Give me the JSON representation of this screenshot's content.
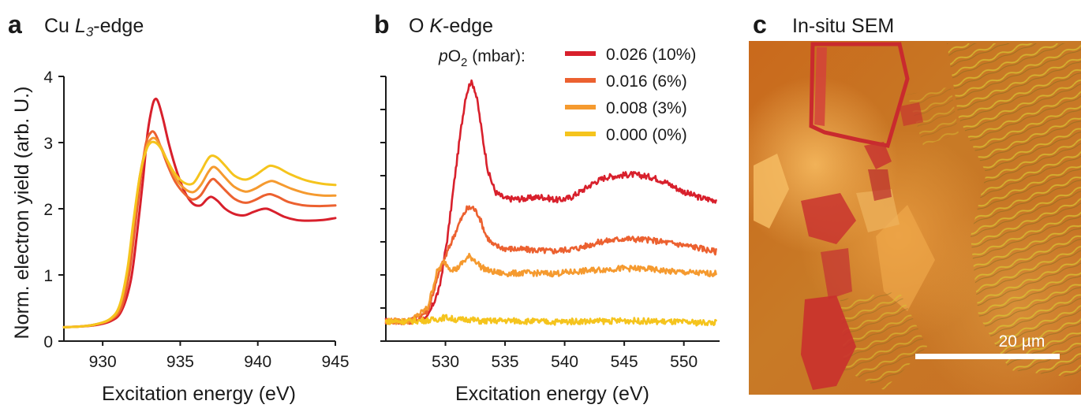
{
  "panels": {
    "a": {
      "letter": "a"
    },
    "b": {
      "letter": "b"
    },
    "c": {
      "letter": "c",
      "title": "In-situ SEM",
      "scalebar_label": "20 µm"
    }
  },
  "legend": {
    "title_p": "p",
    "title_o": "O",
    "title_sub": "2",
    "title_rest": " (mbar):"
  },
  "chart_data": [
    {
      "id": "a",
      "type": "line",
      "title_prefix": "Cu ",
      "title_italic": "L",
      "title_sub": "3",
      "title_suffix": "-edge",
      "xlabel": "Excitation energy (eV)",
      "ylabel": "Norm. electron yield (arb. U.)",
      "xlim": [
        927.5,
        945
      ],
      "ylim": [
        0,
        4
      ],
      "xticks": [
        930,
        935,
        940,
        945
      ],
      "yticks": [
        0,
        1,
        2,
        3,
        4
      ],
      "series": [
        {
          "name": "0.026 (10%)",
          "color": "#d8202c",
          "x": [
            927.5,
            928.5,
            929.5,
            930.5,
            931.2,
            931.8,
            932.2,
            932.6,
            932.9,
            933.2,
            933.4,
            933.6,
            933.9,
            934.3,
            934.8,
            935.3,
            935.8,
            936.3,
            936.7,
            937.0,
            937.4,
            937.9,
            938.5,
            939.1,
            939.7,
            940.2,
            940.6,
            941.1,
            941.7,
            942.5,
            943.3,
            944.2,
            945
          ],
          "y": [
            0.21,
            0.22,
            0.24,
            0.3,
            0.45,
            0.9,
            1.6,
            2.45,
            3.15,
            3.55,
            3.66,
            3.6,
            3.35,
            2.95,
            2.55,
            2.25,
            2.08,
            2.05,
            2.14,
            2.18,
            2.12,
            2.0,
            1.92,
            1.9,
            1.95,
            1.99,
            2.0,
            1.95,
            1.88,
            1.83,
            1.82,
            1.83,
            1.86
          ]
        },
        {
          "name": "0.016 (6%)",
          "color": "#ec6130",
          "x": [
            927.5,
            928.5,
            929.5,
            930.5,
            931.2,
            931.7,
            932.1,
            932.5,
            932.8,
            933.1,
            933.3,
            933.5,
            933.8,
            934.2,
            934.7,
            935.3,
            935.8,
            936.3,
            936.8,
            937.1,
            937.4,
            937.9,
            938.5,
            939.2,
            939.8,
            940.4,
            940.8,
            941.3,
            942.0,
            943.0,
            944.0,
            945
          ],
          "y": [
            0.21,
            0.22,
            0.25,
            0.32,
            0.5,
            1.0,
            1.75,
            2.55,
            3.0,
            3.15,
            3.16,
            3.08,
            2.9,
            2.65,
            2.4,
            2.22,
            2.14,
            2.2,
            2.38,
            2.45,
            2.4,
            2.28,
            2.15,
            2.09,
            2.13,
            2.2,
            2.22,
            2.18,
            2.1,
            2.05,
            2.04,
            2.05
          ]
        },
        {
          "name": "0.008 (3%)",
          "color": "#f59a2f",
          "x": [
            927.5,
            928.5,
            929.5,
            930.5,
            931.1,
            931.6,
            932.0,
            932.4,
            932.8,
            933.1,
            933.4,
            933.7,
            934.1,
            934.6,
            935.2,
            935.8,
            936.3,
            936.8,
            937.1,
            937.4,
            937.9,
            938.5,
            939.2,
            939.8,
            940.4,
            940.9,
            941.4,
            942.2,
            943.2,
            944.2,
            945
          ],
          "y": [
            0.21,
            0.22,
            0.25,
            0.33,
            0.52,
            1.05,
            1.8,
            2.5,
            2.92,
            3.05,
            3.06,
            2.96,
            2.76,
            2.5,
            2.32,
            2.25,
            2.35,
            2.55,
            2.63,
            2.6,
            2.47,
            2.33,
            2.26,
            2.3,
            2.38,
            2.42,
            2.38,
            2.3,
            2.23,
            2.2,
            2.2
          ]
        },
        {
          "name": "0.000 (0%)",
          "color": "#f5c41d",
          "x": [
            927.5,
            928.5,
            929.5,
            930.5,
            931.1,
            931.6,
            932.0,
            932.4,
            932.8,
            933.1,
            933.4,
            933.7,
            934.1,
            934.6,
            935.2,
            935.8,
            936.3,
            936.7,
            937.0,
            937.4,
            937.9,
            938.5,
            939.2,
            939.8,
            940.4,
            940.8,
            941.3,
            942.1,
            943.1,
            944.1,
            945
          ],
          "y": [
            0.21,
            0.22,
            0.25,
            0.34,
            0.55,
            1.1,
            1.85,
            2.5,
            2.88,
            3.0,
            3.0,
            2.93,
            2.76,
            2.55,
            2.4,
            2.38,
            2.55,
            2.72,
            2.8,
            2.77,
            2.65,
            2.5,
            2.44,
            2.5,
            2.6,
            2.65,
            2.62,
            2.52,
            2.43,
            2.38,
            2.36
          ]
        }
      ]
    },
    {
      "id": "b",
      "type": "line",
      "title_prefix": "O ",
      "title_italic": "K",
      "title_suffix": "-edge",
      "xlabel": "Excitation energy (eV)",
      "xlim": [
        525,
        553
      ],
      "ylim": [
        0,
        4
      ],
      "xticks": [
        530,
        535,
        540,
        545,
        550
      ],
      "yticks": [
        0,
        0.5,
        1,
        1.5,
        2,
        2.5,
        3,
        3.5,
        4
      ],
      "series": [
        {
          "name": "0.026 (10%)",
          "color": "#d8202c",
          "x": [
            525,
            527,
            528.5,
            529.5,
            530.2,
            530.8,
            531.3,
            531.7,
            532.1,
            532.4,
            532.7,
            533.1,
            533.6,
            534.2,
            535,
            536.5,
            538,
            539.5,
            540.5,
            541.5,
            542.5,
            543.5,
            544.5,
            545.5,
            546.5,
            547.5,
            548.5,
            549.5,
            550.5,
            551.5,
            552.7
          ],
          "y": [
            0.3,
            0.3,
            0.35,
            0.8,
            1.6,
            2.5,
            3.2,
            3.7,
            3.92,
            3.85,
            3.6,
            3.1,
            2.55,
            2.25,
            2.15,
            2.15,
            2.18,
            2.13,
            2.17,
            2.28,
            2.4,
            2.48,
            2.5,
            2.52,
            2.5,
            2.47,
            2.4,
            2.3,
            2.22,
            2.16,
            2.13
          ]
        },
        {
          "name": "0.016 (6%)",
          "color": "#ec6130",
          "x": [
            525,
            527,
            528.5,
            529.5,
            530.5,
            531.2,
            531.8,
            532.3,
            532.8,
            533.4,
            534,
            535,
            537,
            539,
            541,
            543,
            545,
            547,
            549,
            551,
            552.7
          ],
          "y": [
            0.3,
            0.3,
            0.45,
            1.05,
            1.5,
            1.8,
            2.0,
            2.02,
            1.9,
            1.6,
            1.45,
            1.4,
            1.38,
            1.36,
            1.4,
            1.5,
            1.55,
            1.53,
            1.48,
            1.42,
            1.35
          ]
        },
        {
          "name": "0.008 (3%)",
          "color": "#f59a2f",
          "x": [
            525,
            527,
            528.5,
            529.3,
            529.9,
            530.4,
            530.9,
            531.4,
            532.0,
            532.5,
            533.0,
            533.8,
            535,
            537,
            539,
            541,
            543,
            545,
            547,
            549,
            551,
            552.7
          ],
          "y": [
            0.3,
            0.3,
            0.5,
            1.05,
            1.2,
            1.1,
            1.08,
            1.18,
            1.28,
            1.22,
            1.12,
            1.05,
            1.02,
            1.03,
            1.02,
            1.05,
            1.08,
            1.1,
            1.09,
            1.05,
            1.03,
            1.02
          ]
        },
        {
          "name": "0.000 (0%)",
          "color": "#f5c41d",
          "x": [
            525,
            527,
            529,
            530,
            531,
            532,
            533,
            535,
            537,
            539,
            541,
            543,
            545,
            547,
            549,
            551,
            552.7
          ],
          "y": [
            0.3,
            0.3,
            0.32,
            0.36,
            0.32,
            0.33,
            0.3,
            0.31,
            0.3,
            0.29,
            0.3,
            0.3,
            0.31,
            0.3,
            0.29,
            0.28,
            0.28
          ]
        }
      ]
    }
  ]
}
